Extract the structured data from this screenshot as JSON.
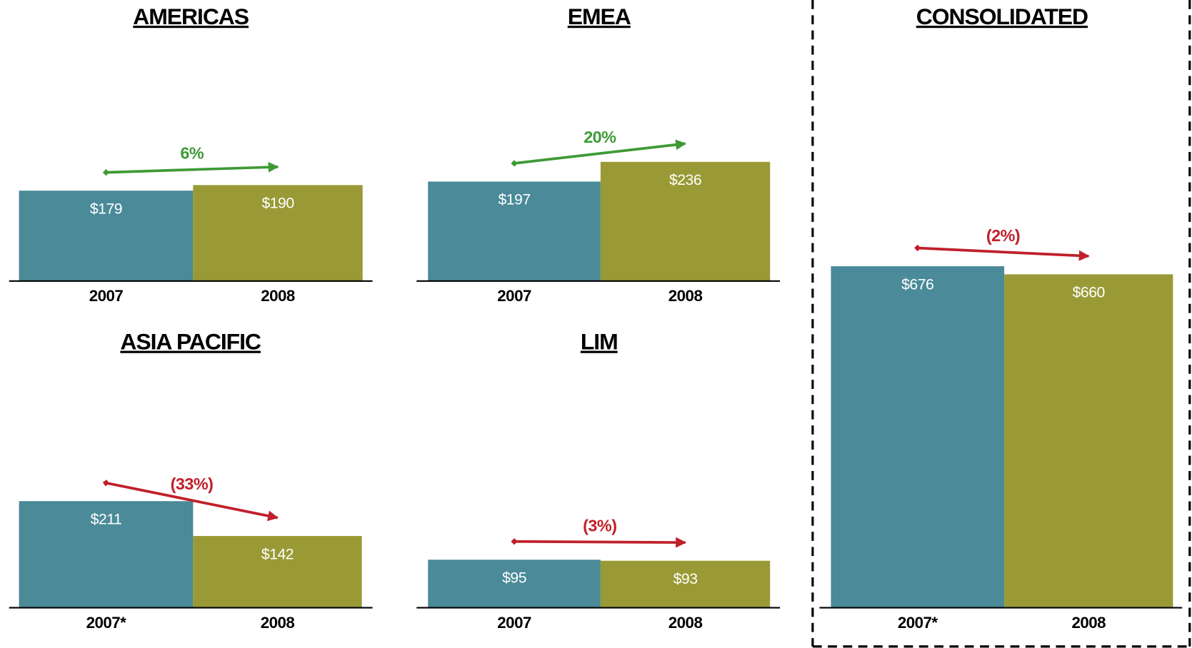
{
  "chart_data": [
    {
      "type": "bar",
      "title": "AMERICAS",
      "categories": [
        "2007",
        "2008"
      ],
      "values": [
        179,
        190
      ],
      "value_labels": [
        "$179",
        "$190"
      ],
      "colors": [
        "#4a8a99",
        "#999a35"
      ],
      "annotation": "6%",
      "annotation_color": "#3d9a35"
    },
    {
      "type": "bar",
      "title": "EMEA",
      "categories": [
        "2007",
        "2008"
      ],
      "values": [
        197,
        236
      ],
      "value_labels": [
        "$197",
        "$236"
      ],
      "colors": [
        "#4a8a99",
        "#999a35"
      ],
      "annotation": "20%",
      "annotation_color": "#3d9a35"
    },
    {
      "type": "bar",
      "title": "CONSOLIDATED",
      "categories": [
        "2007*",
        "2008"
      ],
      "values": [
        676,
        660
      ],
      "value_labels": [
        "$676",
        "$660"
      ],
      "colors": [
        "#4a8a99",
        "#999a35"
      ],
      "annotation": "(2%)",
      "annotation_color": "#c0202a"
    },
    {
      "type": "bar",
      "title": "ASIA PACIFIC",
      "categories": [
        "2007*",
        "2008"
      ],
      "values": [
        211,
        142
      ],
      "value_labels": [
        "$211",
        "$142"
      ],
      "colors": [
        "#4a8a99",
        "#999a35"
      ],
      "annotation": "(33%)",
      "annotation_color": "#c0202a"
    },
    {
      "type": "bar",
      "title": "LIM",
      "categories": [
        "2007",
        "2008"
      ],
      "values": [
        95,
        93
      ],
      "value_labels": [
        "$95",
        "$93"
      ],
      "colors": [
        "#4a8a99",
        "#999a35"
      ],
      "annotation": "(3%)",
      "annotation_color": "#c0202a"
    }
  ]
}
